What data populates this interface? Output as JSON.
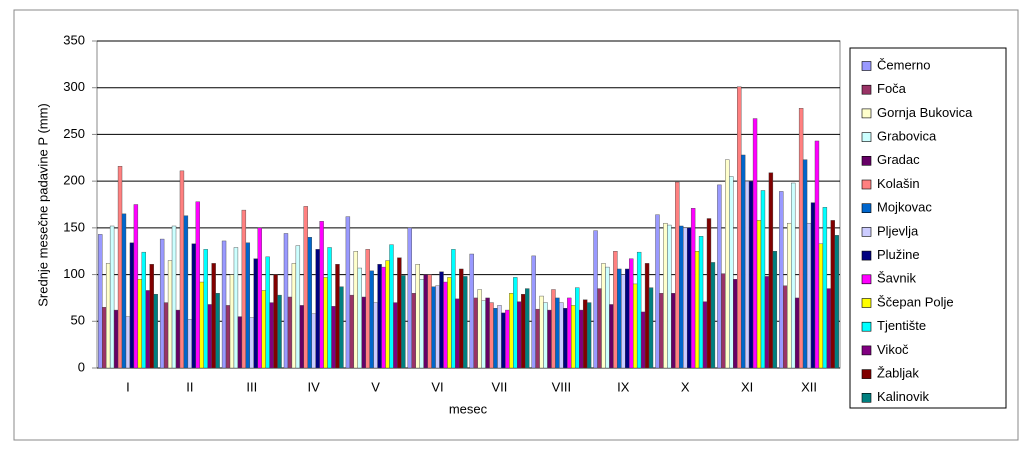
{
  "chart_data": {
    "type": "bar",
    "x_label": "mesec",
    "y_label": "Srednje mesečne padavine P (mm)",
    "categories": [
      "I",
      "II",
      "III",
      "IV",
      "V",
      "VI",
      "VII",
      "VIII",
      "IX",
      "X",
      "XI",
      "XII"
    ],
    "ylim": [
      0,
      350
    ],
    "yticks": [
      0,
      50,
      100,
      150,
      200,
      250,
      300,
      350
    ],
    "grid": true,
    "series": [
      {
        "name": "Čemerno",
        "color": "#9999ff",
        "values": [
          143,
          138,
          136,
          144,
          162,
          150,
          122,
          120,
          147,
          164,
          196,
          189
        ]
      },
      {
        "name": "Foča",
        "color": "#993366",
        "values": [
          65,
          70,
          67,
          76,
          78,
          80,
          75,
          63,
          85,
          80,
          101,
          88
        ]
      },
      {
        "name": "Gornja Bukovica",
        "color": "#ffffcc",
        "values": [
          112,
          115,
          100,
          112,
          125,
          111,
          84,
          77,
          112,
          155,
          223,
          155
        ]
      },
      {
        "name": "Grabovica",
        "color": "#ccffff",
        "values": [
          152,
          152,
          129,
          131,
          107,
          95,
          72,
          70,
          108,
          153,
          205,
          198
        ]
      },
      {
        "name": "Gradac",
        "color": "#660066",
        "values": [
          62,
          62,
          55,
          67,
          76,
          100,
          75,
          62,
          68,
          80,
          95,
          75
        ]
      },
      {
        "name": "Kolašin",
        "color": "#ff8080",
        "values": [
          216,
          211,
          169,
          173,
          127,
          100,
          70,
          84,
          125,
          199,
          301,
          278
        ]
      },
      {
        "name": "Mojkovac",
        "color": "#0066cc",
        "values": [
          165,
          163,
          134,
          140,
          104,
          87,
          64,
          75,
          106,
          152,
          228,
          223
        ]
      },
      {
        "name": "Pljevlja",
        "color": "#ccccff",
        "values": [
          55,
          52,
          54,
          58,
          70,
          88,
          67,
          70,
          100,
          150,
          200,
          155
        ]
      },
      {
        "name": "Plužine",
        "color": "#000080",
        "values": [
          134,
          133,
          117,
          127,
          111,
          103,
          59,
          64,
          106,
          150,
          200,
          177
        ]
      },
      {
        "name": "Šavnik",
        "color": "#ff00ff",
        "values": [
          175,
          178,
          150,
          157,
          108,
          92,
          62,
          75,
          117,
          171,
          267,
          243
        ]
      },
      {
        "name": "Ščepan Polje",
        "color": "#ffff00",
        "values": [
          95,
          92,
          83,
          97,
          115,
          97,
          80,
          67,
          90,
          125,
          158,
          133
        ]
      },
      {
        "name": "Tjentište",
        "color": "#00ffff",
        "values": [
          124,
          127,
          119,
          129,
          132,
          127,
          97,
          86,
          124,
          141,
          190,
          172
        ]
      },
      {
        "name": "Vikoč",
        "color": "#800080",
        "values": [
          83,
          68,
          70,
          66,
          70,
          74,
          71,
          62,
          60,
          71,
          98,
          85
        ]
      },
      {
        "name": "Žabljak",
        "color": "#800000",
        "values": [
          111,
          112,
          100,
          111,
          118,
          106,
          79,
          73,
          112,
          160,
          209,
          158
        ]
      },
      {
        "name": "Kalinovik",
        "color": "#008080",
        "values": [
          79,
          80,
          78,
          87,
          99,
          98,
          85,
          70,
          86,
          113,
          125,
          142
        ]
      }
    ]
  }
}
